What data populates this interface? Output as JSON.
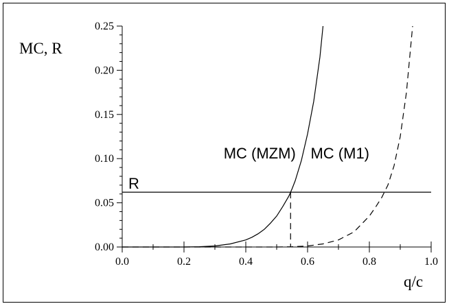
{
  "chart_data": {
    "type": "line",
    "ylabel": "MC, R",
    "xlabel": "q/c",
    "xlim": [
      0.0,
      1.0
    ],
    "ylim": [
      0.0,
      0.25
    ],
    "x_ticks": [
      "0.0",
      "0.2",
      "0.4",
      "0.6",
      "0.8",
      "1.0"
    ],
    "y_ticks": [
      "0.00",
      "0.05",
      "0.10",
      "0.15",
      "0.20",
      "0.25"
    ],
    "grid": false,
    "series": [
      {
        "name": "MC (MZM)",
        "style": "solid",
        "x": [
          0.0,
          0.1,
          0.2,
          0.25,
          0.3,
          0.35,
          0.4,
          0.42,
          0.44,
          0.46,
          0.48,
          0.5,
          0.52,
          0.54,
          0.55,
          0.56,
          0.58,
          0.6,
          0.62,
          0.64,
          0.65
        ],
        "y": [
          0.0,
          0.0,
          0.0,
          0.0003,
          0.0012,
          0.0035,
          0.008,
          0.011,
          0.015,
          0.02,
          0.027,
          0.035,
          0.046,
          0.058,
          0.066,
          0.075,
          0.098,
          0.128,
          0.165,
          0.215,
          0.25
        ]
      },
      {
        "name": "MC (M1)",
        "style": "dashed",
        "x": [
          0.0,
          0.4,
          0.5,
          0.55,
          0.6,
          0.65,
          0.7,
          0.75,
          0.8,
          0.82,
          0.84,
          0.86,
          0.88,
          0.9,
          0.92,
          0.94
        ],
        "y": [
          0.0,
          0.0,
          0.0,
          0.0003,
          0.0012,
          0.0035,
          0.008,
          0.017,
          0.035,
          0.045,
          0.056,
          0.07,
          0.092,
          0.125,
          0.175,
          0.25
        ]
      },
      {
        "name": "R",
        "style": "solid",
        "x": [
          0.0,
          1.0
        ],
        "y": [
          0.062,
          0.062
        ]
      }
    ],
    "annotations": [
      {
        "text": "MC (MZM)",
        "x": 0.445,
        "y": 0.1
      },
      {
        "text": "MC (M1)",
        "x": 0.705,
        "y": 0.1
      },
      {
        "text": "R",
        "x": 0.02,
        "y": 0.066
      }
    ],
    "intersection_drop": {
      "x": 0.545,
      "y": 0.062
    }
  }
}
